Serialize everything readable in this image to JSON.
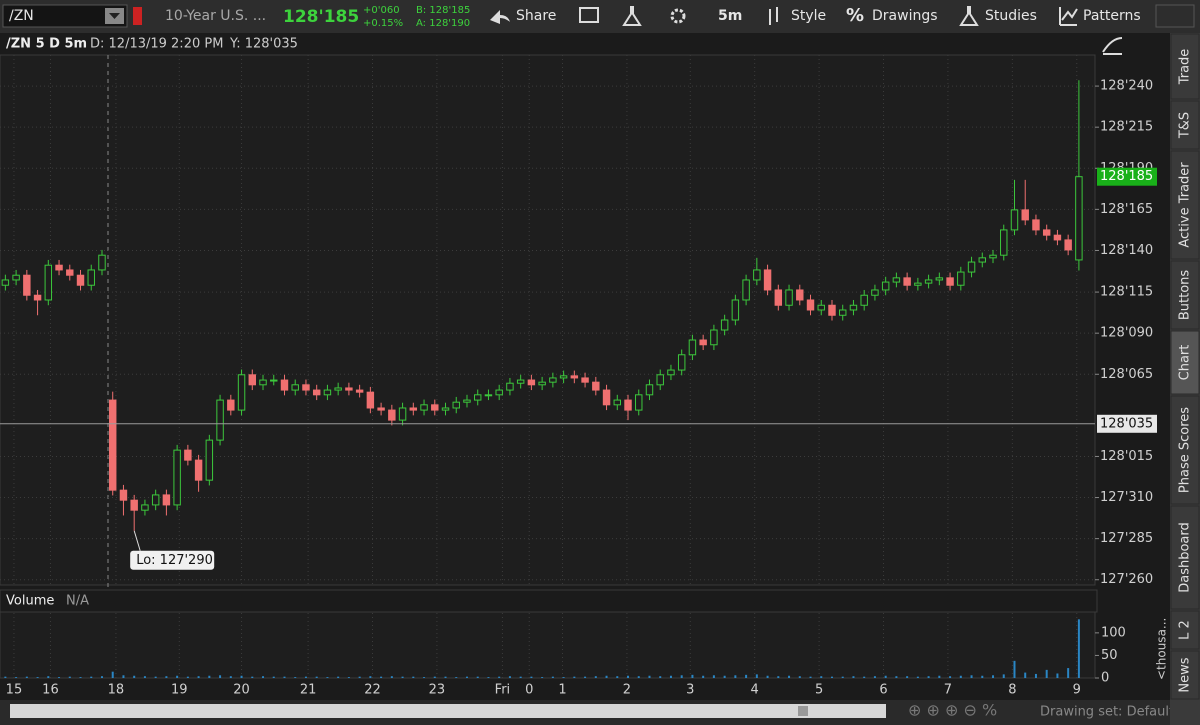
{
  "toolbar": {
    "symbol": "/ZN",
    "description": "10-Year U.S. ...",
    "last": "128'185",
    "net_change": "+0'060",
    "pct_change": "+0.15%",
    "bid": "B: 128'185",
    "ask": "A: 128'190",
    "share": "Share",
    "interval": "5m",
    "style": "Style",
    "drawings": "Drawings",
    "studies": "Studies",
    "patterns": "Patterns"
  },
  "chart_header": {
    "symbol": "/ZN 5 D 5m",
    "date": "D: 12/13/19 2:20 PM",
    "y": "Y: 128'035"
  },
  "chart_data": {
    "type": "candlestick",
    "up_color": "#3cc83c",
    "down_color": "#f07070",
    "volume_color": "#2a86c4",
    "grid": true,
    "xlim": [
      -0.5,
      101.5
    ],
    "ylim": [
      127.803,
      128.809
    ],
    "xticks": [
      {
        "value": 0.8,
        "label": "15"
      },
      {
        "value": 4.2,
        "label": "16"
      },
      {
        "value": 10.3,
        "label": "18"
      },
      {
        "value": 16.2,
        "label": "19"
      },
      {
        "value": 22,
        "label": "20"
      },
      {
        "value": 28.2,
        "label": "21"
      },
      {
        "value": 34.2,
        "label": "22"
      },
      {
        "value": 40.2,
        "label": "23"
      },
      {
        "value": 46.3,
        "label": "Fri"
      },
      {
        "value": 48.8,
        "label": "0"
      },
      {
        "value": 51.9,
        "label": "1"
      },
      {
        "value": 57.9,
        "label": "2"
      },
      {
        "value": 63.8,
        "label": "3"
      },
      {
        "value": 69.8,
        "label": "4"
      },
      {
        "value": 75.8,
        "label": "5"
      },
      {
        "value": 81.8,
        "label": "6"
      },
      {
        "value": 87.8,
        "label": "7"
      },
      {
        "value": 93.8,
        "label": "8"
      },
      {
        "value": 99.8,
        "label": "9"
      }
    ],
    "yticks": [
      {
        "value": 128.75,
        "label": "128'240"
      },
      {
        "value": 128.672,
        "label": "128'215"
      },
      {
        "value": 128.594,
        "label": "128'190"
      },
      {
        "value": 128.516,
        "label": "128'165"
      },
      {
        "value": 128.438,
        "label": "128'140"
      },
      {
        "value": 128.359,
        "label": "128'115"
      },
      {
        "value": 128.281,
        "label": "128'090"
      },
      {
        "value": 128.203,
        "label": "128'065"
      },
      {
        "value": 128.047,
        "label": "128'015"
      },
      {
        "value": 127.969,
        "label": "127'310"
      },
      {
        "value": 127.891,
        "label": "127'285"
      },
      {
        "value": 127.813,
        "label": "127'260"
      }
    ],
    "open": [
      128.372,
      128.382,
      128.391,
      128.353,
      128.344,
      128.41,
      128.401,
      128.391,
      128.372,
      128.401,
      128.154,
      127.983,
      127.964,
      127.945,
      127.955,
      127.974,
      127.955,
      128.059,
      128.04,
      128.002,
      128.078,
      128.154,
      128.135,
      128.202,
      128.183,
      128.192,
      128.192,
      128.173,
      128.183,
      128.173,
      128.164,
      128.173,
      128.177,
      128.173,
      128.169,
      128.139,
      128.135,
      128.116,
      128.139,
      128.135,
      128.145,
      128.135,
      128.139,
      128.15,
      128.154,
      128.164,
      128.164,
      128.173,
      128.186,
      128.192,
      128.183,
      128.188,
      128.196,
      128.2,
      128.196,
      128.188,
      128.173,
      128.145,
      128.154,
      128.135,
      128.164,
      128.183,
      128.202,
      128.211,
      128.24,
      128.268,
      128.259,
      128.287,
      128.306,
      128.344,
      128.382,
      128.401,
      128.363,
      128.334,
      128.363,
      128.344,
      128.325,
      128.334,
      128.315,
      128.325,
      128.334,
      128.353,
      128.363,
      128.378,
      128.386,
      128.372,
      128.376,
      128.382,
      128.386,
      128.372,
      128.397,
      128.416,
      128.424,
      128.429,
      128.477,
      128.515,
      128.496,
      128.477,
      128.467,
      128.458,
      128.42
    ],
    "high": [
      128.392,
      128.401,
      128.401,
      128.363,
      128.42,
      128.42,
      128.411,
      128.401,
      128.411,
      128.439,
      128.17,
      127.993,
      127.974,
      127.965,
      127.984,
      127.984,
      128.069,
      128.069,
      128.05,
      128.088,
      128.164,
      128.164,
      128.212,
      128.212,
      128.202,
      128.202,
      128.202,
      128.193,
      128.193,
      128.183,
      128.183,
      128.187,
      128.187,
      128.183,
      128.179,
      128.149,
      128.145,
      128.149,
      128.149,
      128.155,
      128.155,
      128.149,
      128.16,
      128.164,
      128.174,
      128.174,
      128.183,
      128.196,
      128.202,
      128.202,
      128.198,
      128.206,
      128.21,
      128.21,
      128.206,
      128.198,
      128.183,
      128.164,
      128.164,
      128.174,
      128.193,
      128.212,
      128.221,
      128.25,
      128.278,
      128.278,
      128.297,
      128.316,
      128.354,
      128.392,
      128.424,
      128.411,
      128.373,
      128.373,
      128.373,
      128.354,
      128.344,
      128.344,
      128.335,
      128.344,
      128.363,
      128.373,
      128.388,
      128.396,
      128.396,
      128.386,
      128.392,
      128.396,
      128.396,
      128.407,
      128.426,
      128.434,
      128.439,
      128.487,
      128.572,
      128.572,
      128.506,
      128.487,
      128.477,
      128.468,
      128.761
    ],
    "low": [
      128.362,
      128.372,
      128.343,
      128.315,
      128.334,
      128.391,
      128.381,
      128.362,
      128.362,
      128.391,
      127.973,
      127.935,
      127.906,
      127.935,
      127.945,
      127.935,
      127.945,
      128.03,
      127.98,
      127.992,
      128.068,
      128.125,
      128.125,
      128.173,
      128.173,
      128.182,
      128.163,
      128.163,
      128.163,
      128.154,
      128.154,
      128.163,
      128.163,
      128.159,
      128.129,
      128.125,
      128.106,
      128.106,
      128.125,
      128.125,
      128.125,
      128.125,
      128.129,
      128.14,
      128.144,
      128.154,
      128.154,
      128.163,
      128.176,
      128.173,
      128.173,
      128.178,
      128.186,
      128.186,
      128.178,
      128.163,
      128.135,
      128.135,
      128.116,
      128.125,
      128.154,
      128.173,
      128.192,
      128.201,
      128.23,
      128.249,
      128.249,
      128.277,
      128.296,
      128.334,
      128.372,
      128.353,
      128.324,
      128.324,
      128.334,
      128.315,
      128.315,
      128.305,
      128.305,
      128.315,
      128.324,
      128.343,
      128.353,
      128.368,
      128.362,
      128.362,
      128.366,
      128.372,
      128.362,
      128.362,
      128.387,
      128.406,
      128.414,
      128.419,
      128.467,
      128.486,
      128.467,
      128.457,
      128.448,
      128.429,
      128.4
    ],
    "close": [
      128.382,
      128.391,
      128.353,
      128.344,
      128.41,
      128.401,
      128.391,
      128.372,
      128.401,
      128.429,
      127.983,
      127.964,
      127.945,
      127.955,
      127.974,
      127.955,
      128.059,
      128.04,
      128.002,
      128.078,
      128.154,
      128.135,
      128.202,
      128.183,
      128.192,
      128.192,
      128.173,
      128.183,
      128.173,
      128.164,
      128.173,
      128.177,
      128.173,
      128.169,
      128.139,
      128.135,
      128.116,
      128.139,
      128.135,
      128.145,
      128.135,
      128.139,
      128.15,
      128.154,
      128.164,
      128.164,
      128.173,
      128.186,
      128.192,
      128.183,
      128.188,
      128.196,
      128.2,
      128.196,
      128.188,
      128.173,
      128.145,
      128.154,
      128.135,
      128.164,
      128.183,
      128.202,
      128.211,
      128.24,
      128.268,
      128.259,
      128.287,
      128.306,
      128.344,
      128.382,
      128.401,
      128.363,
      128.334,
      128.363,
      128.344,
      128.325,
      128.334,
      128.315,
      128.325,
      128.334,
      128.353,
      128.363,
      128.378,
      128.386,
      128.372,
      128.376,
      128.382,
      128.386,
      128.372,
      128.397,
      128.416,
      128.424,
      128.429,
      128.477,
      128.515,
      128.496,
      128.477,
      128.467,
      128.458,
      128.439,
      128.578
    ],
    "volume": [
      3,
      2,
      3,
      2,
      4,
      2,
      3,
      2,
      3,
      4,
      14,
      6,
      5,
      4,
      3,
      4,
      5,
      3,
      4,
      5,
      6,
      4,
      5,
      3,
      4,
      3,
      3,
      2,
      3,
      3,
      2,
      3,
      2,
      3,
      4,
      3,
      4,
      3,
      3,
      2,
      3,
      3,
      2,
      3,
      3,
      2,
      3,
      4,
      3,
      3,
      2,
      3,
      2,
      3,
      3,
      4,
      5,
      4,
      5,
      4,
      5,
      4,
      5,
      6,
      7,
      5,
      6,
      5,
      6,
      7,
      8,
      5,
      4,
      5,
      4,
      3,
      4,
      3,
      3,
      4,
      3,
      4,
      5,
      4,
      4,
      3,
      4,
      5,
      4,
      5,
      6,
      5,
      6,
      8,
      38,
      12,
      9,
      18,
      10,
      22,
      130
    ],
    "volume_ylim": [
      0,
      144
    ],
    "volume_yticks": [
      0,
      50,
      100
    ],
    "volume_title": "Volume",
    "volume_value": "N/A",
    "volume_unit": "<thousa...",
    "last_price": {
      "value": 128.578,
      "label": "128'185"
    },
    "crosshair": {
      "value": 128.109,
      "label": "128'035"
    },
    "low_marker": {
      "x": 12,
      "value": 127.906,
      "label": "Lo: 127'290"
    }
  },
  "side_tabs": [
    "Trade",
    "T&S",
    "Active Trader",
    "Buttons",
    "Chart",
    "Phase Scores",
    "Dashboard",
    "L 2",
    "News"
  ],
  "status": {
    "drawing_set": "Drawing set: Default"
  }
}
